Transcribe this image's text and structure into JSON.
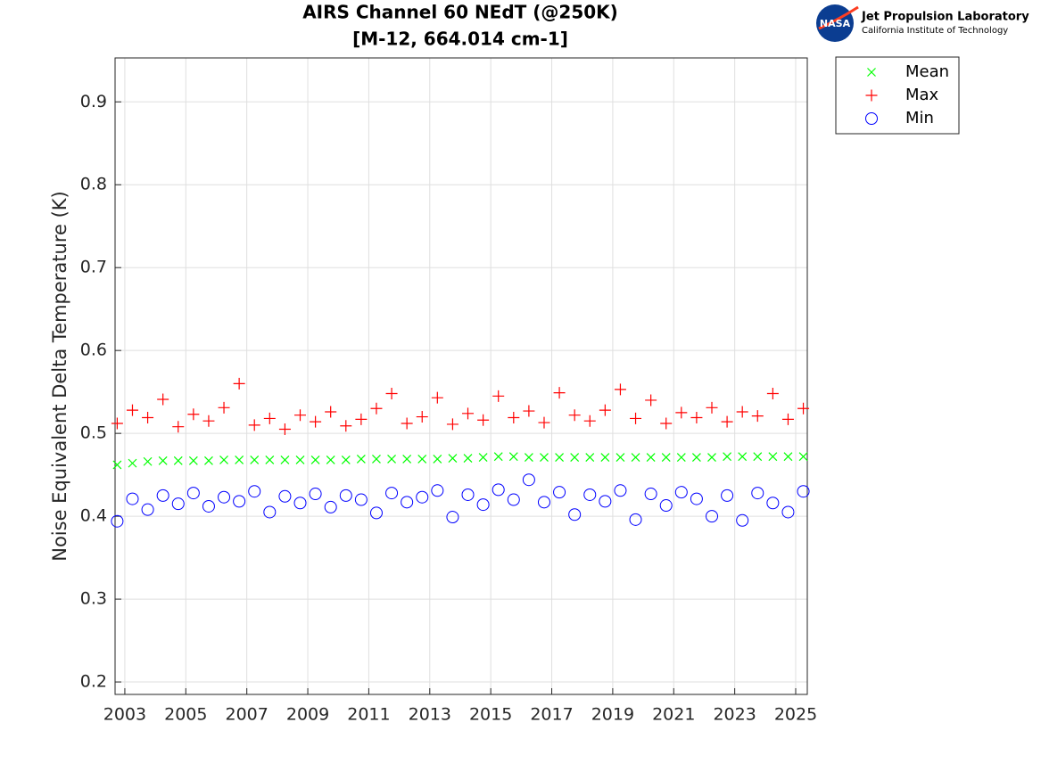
{
  "chart_data": {
    "type": "scatter",
    "title": "AIRS Channel 60 NEdT (@250K)",
    "subtitle": "[M-12, 664.014 cm-1]",
    "y_label": "Noise Equivalent Delta Temperature (K)",
    "logo": {
      "badge": "NASA",
      "name": "Jet Propulsion Laboratory",
      "institution": "California Institute of Technology"
    },
    "x": [
      2002.75,
      2003.25,
      2003.75,
      2004.25,
      2004.75,
      2005.25,
      2005.75,
      2006.25,
      2006.75,
      2007.25,
      2007.75,
      2008.25,
      2008.75,
      2009.25,
      2009.75,
      2010.25,
      2010.75,
      2011.25,
      2011.75,
      2012.25,
      2012.75,
      2013.25,
      2013.75,
      2014.25,
      2014.75,
      2015.25,
      2015.75,
      2016.25,
      2016.75,
      2017.25,
      2017.75,
      2018.25,
      2018.75,
      2019.25,
      2019.75,
      2020.25,
      2020.75,
      2021.25,
      2021.75,
      2022.25,
      2022.75,
      2023.25,
      2023.75,
      2024.25,
      2024.75,
      2025.25
    ],
    "series": [
      {
        "name": "Mean",
        "color": "#00ff00",
        "marker": "x",
        "values": [
          0.462,
          0.464,
          0.466,
          0.467,
          0.467,
          0.467,
          0.467,
          0.468,
          0.468,
          0.468,
          0.468,
          0.468,
          0.468,
          0.468,
          0.468,
          0.468,
          0.469,
          0.469,
          0.469,
          0.469,
          0.469,
          0.469,
          0.47,
          0.47,
          0.471,
          0.472,
          0.472,
          0.471,
          0.471,
          0.471,
          0.471,
          0.471,
          0.471,
          0.471,
          0.471,
          0.471,
          0.471,
          0.471,
          0.471,
          0.471,
          0.472,
          0.472,
          0.472,
          0.472,
          0.472,
          0.472
        ]
      },
      {
        "name": "Max",
        "color": "#ff0000",
        "marker": "+",
        "values": [
          0.512,
          0.528,
          0.519,
          0.541,
          0.508,
          0.523,
          0.515,
          0.531,
          0.56,
          0.51,
          0.518,
          0.505,
          0.522,
          0.514,
          0.526,
          0.509,
          0.517,
          0.53,
          0.548,
          0.512,
          0.52,
          0.543,
          0.511,
          0.524,
          0.516,
          0.545,
          0.519,
          0.527,
          0.513,
          0.549,
          0.522,
          0.515,
          0.528,
          0.553,
          0.518,
          0.54,
          0.512,
          0.525,
          0.519,
          0.531,
          0.514,
          0.526,
          0.521,
          0.548,
          0.517,
          0.53
        ]
      },
      {
        "name": "Min",
        "color": "#0000ff",
        "marker": "o",
        "values": [
          0.394,
          0.421,
          0.408,
          0.425,
          0.415,
          0.428,
          0.412,
          0.423,
          0.418,
          0.43,
          0.405,
          0.424,
          0.416,
          0.427,
          0.411,
          0.425,
          0.42,
          0.404,
          0.428,
          0.417,
          0.423,
          0.431,
          0.399,
          0.426,
          0.414,
          0.432,
          0.42,
          0.444,
          0.417,
          0.429,
          0.402,
          0.426,
          0.418,
          0.431,
          0.396,
          0.427,
          0.413,
          0.429,
          0.421,
          0.4,
          0.425,
          0.395,
          0.428,
          0.416,
          0.405,
          0.43
        ]
      }
    ],
    "xlim": [
      2002.68,
      2025.38
    ],
    "xticks": [
      2003,
      2005,
      2007,
      2009,
      2011,
      2013,
      2015,
      2017,
      2019,
      2021,
      2023,
      2025
    ],
    "ylim": [
      0.185,
      0.953
    ],
    "yticks": [
      0.2,
      0.3,
      0.4,
      0.5,
      0.6,
      0.7,
      0.8,
      0.9
    ],
    "grid": true,
    "legend": "outside-top-right"
  }
}
